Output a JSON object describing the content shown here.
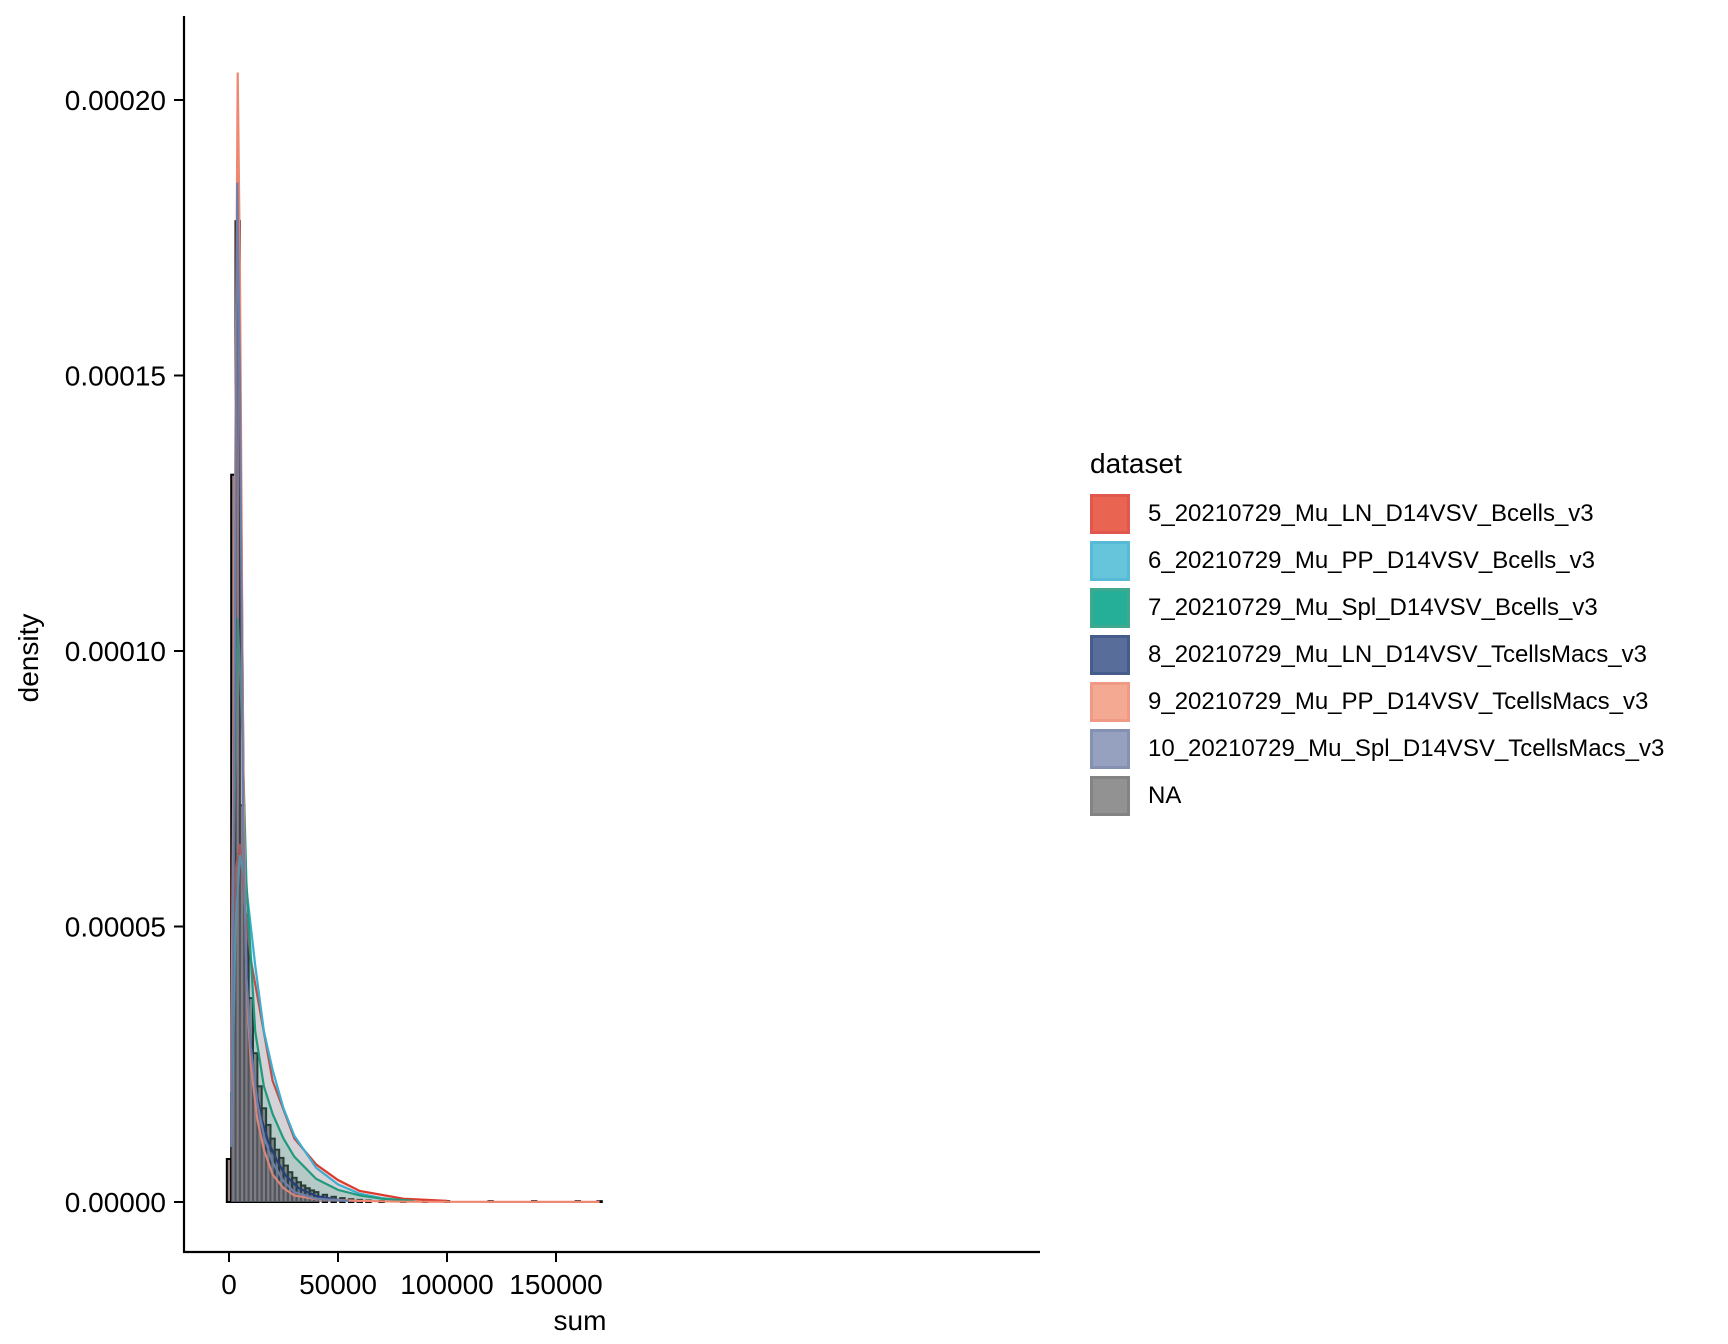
{
  "chart_data": {
    "type": "histogram",
    "title": "",
    "xlabel": "sum",
    "ylabel": "density",
    "xlim": [
      -10000,
      180000
    ],
    "ylim": [
      -9.5e-06,
      0.000215
    ],
    "x_ticks": [
      0,
      50000,
      100000,
      150000
    ],
    "x_tick_labels": [
      "0",
      "50000",
      "100000",
      "150000"
    ],
    "y_ticks": [
      0,
      5e-05,
      0.0001,
      0.00015,
      0.0002
    ],
    "y_tick_labels": [
      "0.00000",
      "0.00005",
      "0.00010",
      "0.00015",
      "0.00020"
    ],
    "grid": false,
    "legend": {
      "title": "dataset",
      "position": "right",
      "entries": [
        {
          "label": "5_20210729_Mu_LN_D14VSV_Bcells_v3",
          "fill": "#E64B35",
          "line": "#DC3A2E"
        },
        {
          "label": "6_20210729_Mu_PP_D14VSV_Bcells_v3",
          "fill": "#4DBBD5",
          "line": "#3AAFD0"
        },
        {
          "label": "7_20210729_Mu_Spl_D14VSV_Bcells_v3",
          "fill": "#00A087",
          "line": "#1F9A7C"
        },
        {
          "label": "8_20210729_Mu_LN_D14VSV_TcellsMacs_v3",
          "fill": "#3C5488",
          "line": "#25407A"
        },
        {
          "label": "9_20210729_Mu_PP_D14VSV_TcellsMacs_v3",
          "fill": "#F39B7F",
          "line": "#EE8870"
        },
        {
          "label": "10_20210729_Mu_Spl_D14VSV_TcellsMacs_v3",
          "fill": "#8491B4",
          "line": "#6F7EA6"
        },
        {
          "label": "NA",
          "fill": "#7F7F7F",
          "line": "#6E6E6E"
        }
      ]
    },
    "bin_width": 2000,
    "histogram": {
      "bin_centers": [
        0,
        2000,
        4000,
        6000,
        8000,
        10000,
        12000,
        14000,
        16000,
        18000,
        20000,
        22000,
        24000,
        26000,
        28000,
        30000,
        32000,
        34000,
        36000,
        38000,
        40000,
        44000,
        48000,
        52000,
        56000,
        60000,
        64000,
        70000,
        80000,
        90000,
        100000,
        120000,
        140000,
        160000,
        170000
      ],
      "density": [
        7.8e-06,
        0.000132,
        0.000178,
        7.2e-05,
        5.2e-05,
        3.7e-05,
        2.7e-05,
        2.1e-05,
        1.7e-05,
        1.4e-05,
        1.15e-05,
        9.5e-06,
        8e-06,
        6.6e-06,
        5.4e-06,
        4.4e-06,
        3.6e-06,
        3e-06,
        2.5e-06,
        2.1e-06,
        1.8e-06,
        1.3e-06,
        9.5e-07,
        7e-07,
        5e-07,
        3.8e-07,
        2.8e-07,
        1.8e-07,
        1e-07,
        6e-08,
        4e-08,
        2e-08,
        1e-08,
        1e-08,
        1e-08
      ]
    },
    "density_curves": [
      {
        "name": "5_20210729_Mu_LN_D14VSV_Bcells_v3",
        "x": [
          1000,
          3000,
          5000,
          7000,
          10000,
          15000,
          20000,
          30000,
          40000,
          50000,
          60000,
          80000,
          100000
        ],
        "y": [
          1.2e-05,
          6e-05,
          6.5e-05,
          5.5e-05,
          4.4e-05,
          3.3e-05,
          2.2e-05,
          1.15e-05,
          6.8e-06,
          4e-06,
          2e-06,
          6e-07,
          2e-07
        ]
      },
      {
        "name": "6_20210729_Mu_PP_D14VSV_Bcells_v3",
        "x": [
          1000,
          3000,
          5000,
          8000,
          12000,
          16000,
          20000,
          25000,
          30000,
          40000,
          50000,
          60000,
          70000,
          80000
        ],
        "y": [
          1e-05,
          5e-05,
          6.3e-05,
          5.7e-05,
          4.3e-05,
          3.1e-05,
          2.4e-05,
          1.7e-05,
          1.2e-05,
          6.2e-06,
          3.2e-06,
          1.5e-06,
          7e-07,
          3e-07
        ]
      },
      {
        "name": "7_20210729_Mu_Spl_D14VSV_Bcells_v3",
        "x": [
          1000,
          2500,
          4000,
          6000,
          8000,
          12000,
          16000,
          20000,
          25000,
          30000,
          40000,
          50000,
          60000,
          70000,
          85000
        ],
        "y": [
          2.4e-05,
          7e-05,
          0.000106,
          8.7e-05,
          5.8e-05,
          3.1e-05,
          2.1e-05,
          1.6e-05,
          1.15e-05,
          8.2e-06,
          4.2e-06,
          2.2e-06,
          1.2e-06,
          6e-07,
          2e-07
        ]
      },
      {
        "name": "8_20210729_Mu_LN_D14VSV_TcellsMacs_v3",
        "x": [
          1000,
          2500,
          4000,
          5500,
          7000,
          9000,
          12000,
          15000,
          18000,
          22000,
          26000,
          32000,
          40000,
          50000,
          60000
        ],
        "y": [
          1e-05,
          8e-05,
          0.000183,
          0.00013,
          6e-05,
          3.3e-05,
          2.1e-05,
          1.5e-05,
          1.1e-05,
          7.5e-06,
          4.8e-06,
          2.5e-06,
          1.1e-06,
          4e-07,
          1e-07
        ]
      },
      {
        "name": "9_20210729_Mu_PP_D14VSV_TcellsMacs_v3",
        "x": [
          1000,
          2500,
          4000,
          5000,
          6500,
          8000,
          10000,
          13000,
          16000,
          20000,
          25000,
          30000,
          40000,
          60000,
          80000,
          100000,
          130000,
          170000
        ],
        "y": [
          2e-05,
          0.00011,
          0.000205,
          0.00017,
          8e-05,
          4e-05,
          2.5e-05,
          1.5e-05,
          9.5e-06,
          5e-06,
          2.5e-06,
          1.2e-06,
          5e-07,
          2e-07,
          5e-08,
          3e-08,
          2e-08,
          1e-08
        ]
      },
      {
        "name": "10_20210729_Mu_Spl_D14VSV_TcellsMacs_v3",
        "x": [
          1000,
          2500,
          3800,
          5000,
          6500,
          8000,
          10000,
          13000,
          16000,
          20000,
          25000,
          30000,
          40000,
          55000
        ],
        "y": [
          1e-05,
          9e-05,
          0.000185,
          0.00015,
          7e-05,
          4.1e-05,
          2.8e-05,
          1.8e-05,
          1.2e-05,
          7.2e-06,
          3.8e-06,
          1.8e-06,
          6e-07,
          2e-07
        ]
      }
    ]
  }
}
